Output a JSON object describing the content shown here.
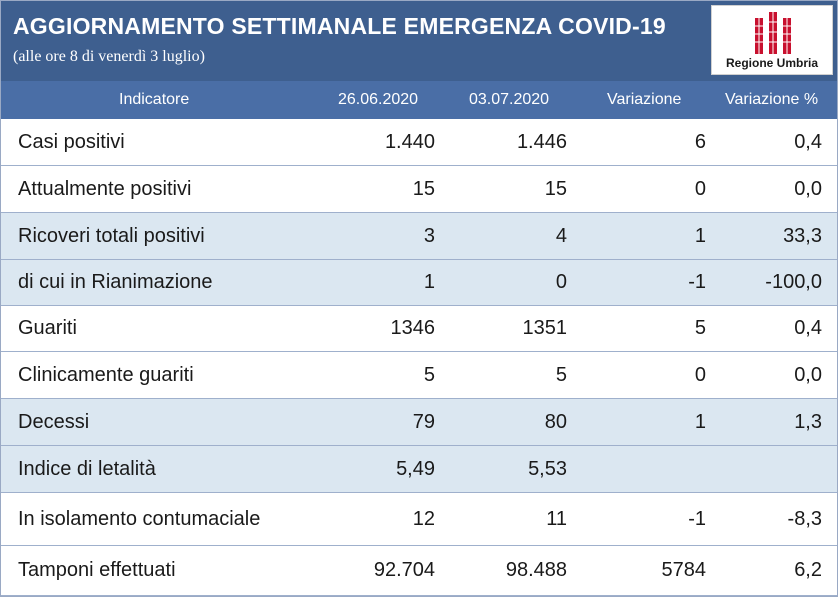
{
  "title": "AGGIORNAMENTO SETTIMANALE EMERGENZA COVID-19",
  "subtitle": "(alle ore 8 di venerdì 3 luglio)",
  "logo": {
    "text": "Regione Umbria",
    "icon": "regione-umbria-logo-icon",
    "color": "#c8102e"
  },
  "colors": {
    "banner": "#3e5f8f",
    "header": "#4a6ea6",
    "shaded_row": "#dbe7f1"
  },
  "table": {
    "headers": [
      "Indicatore",
      "26.06.2020",
      "03.07.2020",
      "Variazione",
      "Variazione %"
    ],
    "rows": [
      {
        "name": "Casi positivi",
        "d1": "1.440",
        "d2": "1.446",
        "var": "6",
        "varp": "0,4",
        "shaded": false
      },
      {
        "name": "Attualmente positivi",
        "d1": "15",
        "d2": "15",
        "var": "0",
        "varp": "0,0",
        "shaded": false
      },
      {
        "name": "Ricoveri totali positivi",
        "d1": "3",
        "d2": "4",
        "var": "1",
        "varp": "33,3",
        "shaded": true
      },
      {
        "name": "di cui in Rianimazione",
        "d1": "1",
        "d2": "0",
        "var": "-1",
        "varp": "-100,0",
        "shaded": true
      },
      {
        "name": "Guariti",
        "d1": "1346",
        "d2": "1351",
        "var": "5",
        "varp": "0,4",
        "shaded": false
      },
      {
        "name": "Clinicamente guariti",
        "d1": "5",
        "d2": "5",
        "var": "0",
        "varp": "0,0",
        "shaded": false
      },
      {
        "name": "Decessi",
        "d1": "79",
        "d2": "80",
        "var": "1",
        "varp": "1,3",
        "shaded": true
      },
      {
        "name": "Indice di letalità",
        "d1": "5,49",
        "d2": "5,53",
        "var": "",
        "varp": "",
        "shaded": true
      },
      {
        "name": "In isolamento contumaciale",
        "d1": "12",
        "d2": "11",
        "var": "-1",
        "varp": "-8,3",
        "shaded": false
      },
      {
        "name": "Tamponi effettuati",
        "d1": "92.704",
        "d2": "98.488",
        "var": "5784",
        "varp": "6,2",
        "shaded": false
      }
    ]
  }
}
